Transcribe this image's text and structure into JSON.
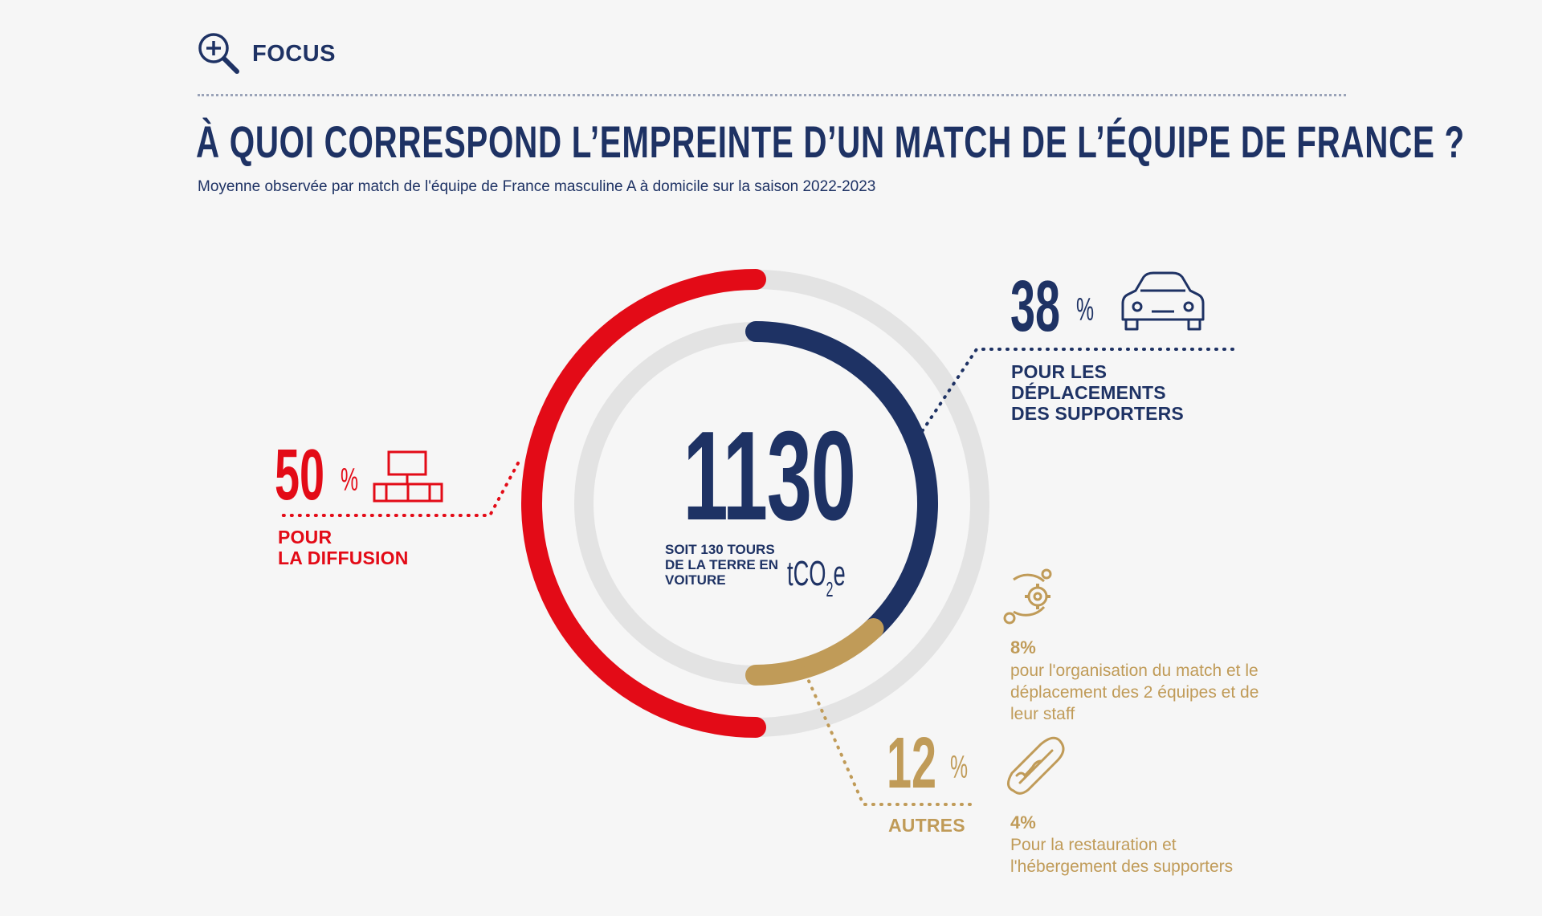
{
  "header": {
    "focus_label": "FOCUS",
    "headline": "À QUOI CORRESPOND L’EMPREINTE D’UN MATCH DE L’ÉQUIPE DE FRANCE ?",
    "subtitle": "Moyenne observée par match de l'équipe de France masculine A à domicile sur la saison 2022-2023"
  },
  "center": {
    "value": "1130",
    "note": "SOIT 130 TOURS DE LA TERRE EN VOITURE",
    "unit_main": "tCO",
    "unit_sub": "2",
    "unit_tail": "e"
  },
  "colors": {
    "red": "#e30b17",
    "navy": "#1e3264",
    "gold": "#c09b58",
    "track": "#e3e3e3",
    "background": "#f6f6f6"
  },
  "icons": {
    "focus": "magnifier-plus-icon",
    "diffusion": "computer-network-icon",
    "supporters": "car-icon",
    "organisation": "gear-cycle-icon",
    "restauration": "hot-dog-icon"
  },
  "chart_data": {
    "type": "donut",
    "total": 1130,
    "unit": "tCO2e",
    "segments": [
      {
        "percent": 50,
        "label": "POUR LA DIFFUSION",
        "color": "#e30b17"
      },
      {
        "percent": 38,
        "label": "POUR LES DÉPLACEMENTS DES SUPPORTERS",
        "color": "#1e3264"
      },
      {
        "percent": 12,
        "label": "AUTRES",
        "color": "#c09b58"
      }
    ],
    "autres_breakdown": [
      {
        "percent_label": "8%",
        "description": "pour l'organisation du match et le déplacement des 2 équipes et de leur staff"
      },
      {
        "percent_label": "4%",
        "description": "Pour la restauration et l'hébergement des supporters"
      }
    ]
  },
  "labels": {
    "diffusion": {
      "value": "50",
      "symbol": "%",
      "line1": "POUR",
      "line2": "LA DIFFUSION"
    },
    "supporters": {
      "value": "38",
      "symbol": "%",
      "line1": "POUR LES",
      "line2": "DÉPLACEMENTS",
      "line3": "DES SUPPORTERS"
    },
    "autres": {
      "value": "12",
      "symbol": "%",
      "line1": "AUTRES"
    },
    "organisation": {
      "pct": "8%",
      "text": "pour l'organisation du match et le déplacement des 2 équipes et de leur staff"
    },
    "restauration": {
      "pct": "4%",
      "text": "Pour la restauration et l'hébergement des supporters"
    }
  }
}
